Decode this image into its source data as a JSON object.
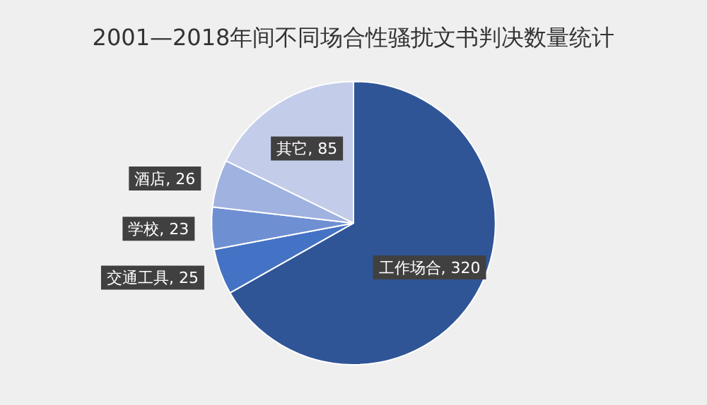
{
  "chart_data": {
    "type": "pie",
    "title": "2001—2018年间不同场合性骚扰文书判决数量统计",
    "categories": [
      "工作场合",
      "交通工具",
      "学校",
      "酒店",
      "其它"
    ],
    "values": [
      320,
      25,
      23,
      26,
      85
    ],
    "value_labels": [
      ", 320",
      ", 25",
      ", 23",
      ", 26",
      ", 85"
    ],
    "colors": [
      "#2f5597",
      "#4472c4",
      "#6f8fd3",
      "#9fb2e0",
      "#c3cdea"
    ],
    "legend": false
  }
}
